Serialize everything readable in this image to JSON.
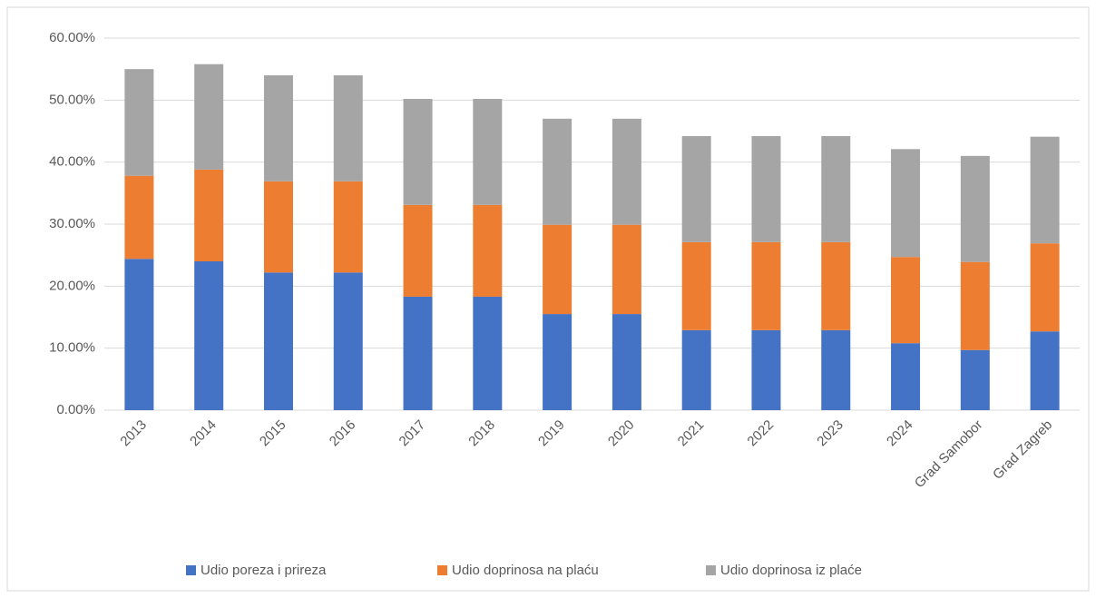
{
  "chart_data": {
    "type": "stacked_bar",
    "categories": [
      "2013",
      "2014",
      "2015",
      "2016",
      "2017",
      "2018",
      "2019",
      "2020",
      "2021",
      "2022",
      "2023",
      "2024",
      "Grad Samobor",
      "Grad Zagreb"
    ],
    "series": [
      {
        "name": "Udio poreza i prireza",
        "color": "#4472c4",
        "values": [
          24.4,
          24.0,
          22.2,
          22.2,
          18.3,
          18.3,
          15.5,
          15.5,
          12.9,
          12.9,
          12.9,
          10.8,
          9.7,
          12.7
        ]
      },
      {
        "name": "Udio doprinosa na plaću",
        "color": "#ed7d31",
        "values": [
          13.4,
          14.8,
          14.7,
          14.7,
          14.8,
          14.8,
          14.4,
          14.4,
          14.2,
          14.2,
          14.2,
          13.9,
          14.2,
          14.2
        ]
      },
      {
        "name": "Udio doprinosa iz plaće",
        "color": "#a5a5a5",
        "values": [
          17.2,
          17.0,
          17.1,
          17.1,
          17.1,
          17.1,
          17.1,
          17.1,
          17.1,
          17.1,
          17.1,
          17.4,
          17.1,
          17.2
        ]
      }
    ],
    "ylim": [
      0,
      60
    ],
    "yticks": [
      {
        "value": 0,
        "label": "0.00%"
      },
      {
        "value": 10,
        "label": "10.00%"
      },
      {
        "value": 20,
        "label": "20.00%"
      },
      {
        "value": 30,
        "label": "30.00%"
      },
      {
        "value": 40,
        "label": "40.00%"
      },
      {
        "value": 50,
        "label": "50.00%"
      },
      {
        "value": 60,
        "label": "60.00%"
      }
    ],
    "grid": true,
    "legend": "bottom"
  }
}
